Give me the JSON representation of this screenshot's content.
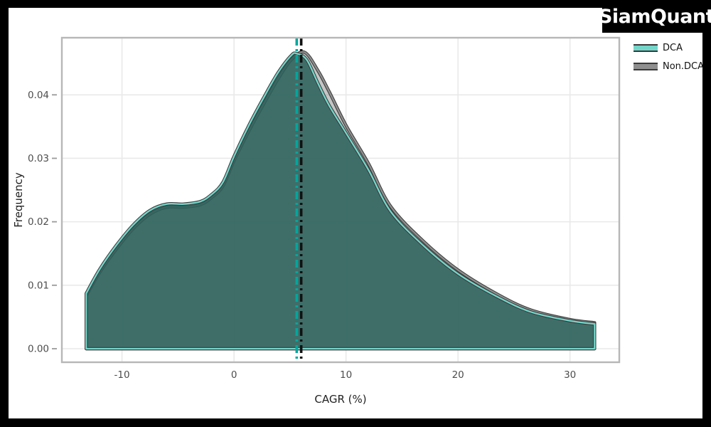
{
  "brand": {
    "logo_text": "SiamQuant"
  },
  "legend": {
    "items": [
      {
        "label": "DCA",
        "color": "#74D6CA"
      },
      {
        "label": "Non.DCA",
        "color": "#8F8F8F"
      }
    ]
  },
  "colors": {
    "panel_border": "#b7b7b7",
    "gridline": "#e9e9e9",
    "tick_text": "#4d4d4d",
    "curve_outline": "#3a3a3a",
    "overlap_fill": "#3F6E69"
  },
  "chart_data": {
    "type": "area",
    "kind": "kde-density-comparison",
    "title": "",
    "xlabel": "CAGR (%)",
    "ylabel": "Frequency",
    "xlim": [
      -15.37,
      34.4
    ],
    "ylim": [
      -0.00213,
      0.049
    ],
    "grid": true,
    "legend_position": "outside-top-right",
    "x_ticks": {
      "values": [
        -10,
        0,
        10,
        20,
        30
      ],
      "labels": [
        "-10",
        "0",
        "10",
        "20",
        "30"
      ]
    },
    "y_ticks": {
      "values": [
        0,
        0.01,
        0.02,
        0.03,
        0.04
      ],
      "labels": [
        "0.00",
        "0.01",
        "0.02",
        "0.03",
        "0.04"
      ]
    },
    "series": [
      {
        "name": "DCA",
        "line_color": "#74D6CA",
        "fill_color": "rgba(44,98,92,0.88)",
        "mean_vline": {
          "x": 5.6,
          "color": "#00A79E",
          "style": "dash-dot"
        },
        "x": [
          -13.2,
          -12,
          -10.5,
          -9,
          -7.5,
          -6,
          -4.5,
          -3,
          -2,
          -1,
          0,
          1.3,
          2.6,
          3.9,
          5.1,
          5.6,
          6.5,
          7.5,
          8.5,
          10,
          12,
          14,
          17,
          20,
          23.5,
          26.5,
          30,
          32.2
        ],
        "density": [
          0.0087,
          0.0125,
          0.0163,
          0.0195,
          0.0218,
          0.0228,
          0.0228,
          0.0232,
          0.0243,
          0.0262,
          0.0303,
          0.0351,
          0.0394,
          0.0434,
          0.0462,
          0.0465,
          0.0455,
          0.0418,
          0.0383,
          0.034,
          0.0282,
          0.0216,
          0.0161,
          0.0118,
          0.0082,
          0.0058,
          0.0044,
          0.0039
        ]
      },
      {
        "name": "Non.DCA",
        "line_color": "#8F8F8F",
        "fill_color": "rgba(128,128,128,0.45)",
        "mean_vline": {
          "x": 6.0,
          "color": "#111111",
          "style": "dash-dot"
        },
        "x": [
          -13.2,
          -12,
          -10.5,
          -9,
          -7.5,
          -6,
          -4.5,
          -3,
          -2,
          -1,
          0,
          1.3,
          2.6,
          3.9,
          5.1,
          6.3,
          7.5,
          8.5,
          10,
          12,
          14,
          17,
          20,
          23.5,
          26.5,
          30,
          32.2
        ],
        "density": [
          0.0083,
          0.012,
          0.0157,
          0.0189,
          0.0212,
          0.0223,
          0.0223,
          0.0227,
          0.0238,
          0.0256,
          0.0296,
          0.0342,
          0.0384,
          0.0424,
          0.0455,
          0.0467,
          0.0438,
          0.0405,
          0.0352,
          0.0292,
          0.0224,
          0.0168,
          0.0124,
          0.0086,
          0.0061,
          0.0046,
          0.0041
        ]
      }
    ]
  }
}
